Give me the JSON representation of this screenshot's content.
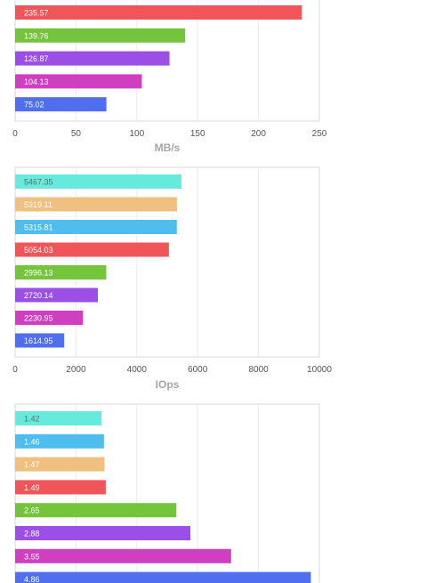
{
  "chart_data": [
    {
      "type": "bar",
      "orientation": "horizontal",
      "values": [
        235.57,
        139.76,
        126.87,
        104.13,
        75.02
      ],
      "data_labels": [
        "235.57",
        "139.76",
        "126.87",
        "104.13",
        "75.02"
      ],
      "colors": [
        "#f0555a",
        "#74c53c",
        "#9b4fe6",
        "#cf3fc0",
        "#4f6ef0"
      ],
      "label_colors": [
        "#ffffff",
        "#ffffff",
        "#ffffff",
        "#ffffff",
        "#ffffff"
      ],
      "xlim": [
        0,
        250
      ],
      "ticks": [
        0,
        50,
        100,
        150,
        200,
        250
      ],
      "tick_labels": [
        "0",
        "50",
        "100",
        "150",
        "200",
        "250"
      ],
      "xlabel": "MB/s",
      "grid": true
    },
    {
      "type": "bar",
      "orientation": "horizontal",
      "values": [
        5467.35,
        5319.11,
        5315.81,
        5054.03,
        2996.13,
        2720.14,
        2230.95,
        1614.95
      ],
      "data_labels": [
        "5467.35",
        "5319.11",
        "5315.81",
        "5054.03",
        "2996.13",
        "2720.14",
        "2230.95",
        "1614.95"
      ],
      "colors": [
        "#66eadb",
        "#efc07f",
        "#4fbdee",
        "#f0555a",
        "#74c53c",
        "#9b4fe6",
        "#cf3fc0",
        "#4f6ef0"
      ],
      "label_colors": [
        "#6b6b6b",
        "#ffffff",
        "#ffffff",
        "#ffffff",
        "#ffffff",
        "#ffffff",
        "#ffffff",
        "#ffffff"
      ],
      "xlim": [
        0,
        10000
      ],
      "ticks": [
        0,
        2000,
        4000,
        6000,
        8000,
        10000
      ],
      "tick_labels": [
        "0",
        "2000",
        "4000",
        "6000",
        "8000",
        "10000"
      ],
      "xlabel": "IOps",
      "grid": true
    },
    {
      "type": "bar",
      "orientation": "horizontal",
      "values": [
        1.42,
        1.46,
        1.47,
        1.49,
        2.65,
        2.88,
        3.55,
        4.86
      ],
      "data_labels": [
        "1.42",
        "1.46",
        "1.47",
        "1.49",
        "2.65",
        "2.88",
        "3.55",
        "4.86"
      ],
      "colors": [
        "#66eadb",
        "#4fbdee",
        "#efc07f",
        "#f0555a",
        "#74c53c",
        "#9b4fe6",
        "#cf3fc0",
        "#4f6ef0"
      ],
      "label_colors": [
        "#6b6b6b",
        "#ffffff",
        "#ffffff",
        "#ffffff",
        "#ffffff",
        "#ffffff",
        "#ffffff",
        "#ffffff"
      ],
      "xlim": [
        0,
        5
      ],
      "grid": true
    }
  ]
}
